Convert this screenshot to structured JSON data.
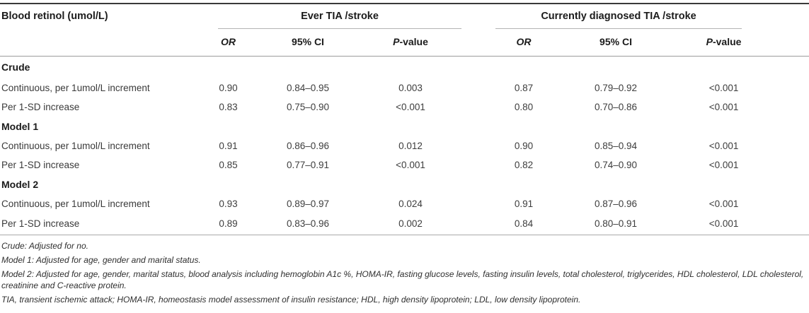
{
  "table": {
    "row_header": "Blood retinol (umol/L)",
    "groups": [
      {
        "label": "Ever TIA /stroke"
      },
      {
        "label": "Currently diagnosed TIA /stroke"
      }
    ],
    "subheaders": {
      "or": "OR",
      "ci": "95% CI",
      "p_italic": "P",
      "p_rest": "-value"
    },
    "sections": [
      {
        "title": "Crude",
        "rows": [
          {
            "label": "Continuous, per 1umol/L increment",
            "ever": {
              "or": "0.90",
              "ci": "0.84–0.95",
              "p": "0.003"
            },
            "current": {
              "or": "0.87",
              "ci": "0.79–0.92",
              "p": "<0.001"
            }
          },
          {
            "label": "Per 1-SD increase",
            "ever": {
              "or": "0.83",
              "ci": "0.75–0.90",
              "p": "<0.001"
            },
            "current": {
              "or": "0.80",
              "ci": "0.70–0.86",
              "p": "<0.001"
            }
          }
        ]
      },
      {
        "title": "Model 1",
        "rows": [
          {
            "label": "Continuous, per 1umol/L increment",
            "ever": {
              "or": "0.91",
              "ci": "0.86–0.96",
              "p": "0.012"
            },
            "current": {
              "or": "0.90",
              "ci": "0.85–0.94",
              "p": "<0.001"
            }
          },
          {
            "label": "Per 1-SD increase",
            "ever": {
              "or": "0.85",
              "ci": "0.77–0.91",
              "p": "<0.001"
            },
            "current": {
              "or": "0.82",
              "ci": "0.74–0.90",
              "p": "<0.001"
            }
          }
        ]
      },
      {
        "title": "Model 2",
        "rows": [
          {
            "label": "Continuous, per 1umol/L increment",
            "ever": {
              "or": "0.93",
              "ci": "0.89–0.97",
              "p": "0.024"
            },
            "current": {
              "or": "0.91",
              "ci": "0.87–0.96",
              "p": "<0.001"
            }
          },
          {
            "label": "Per 1-SD increase",
            "ever": {
              "or": "0.89",
              "ci": "0.83–0.96",
              "p": "0.002"
            },
            "current": {
              "or": "0.84",
              "ci": "0.80–0.91",
              "p": "<0.001"
            }
          }
        ]
      }
    ]
  },
  "footnotes": [
    "Crude: Adjusted for no.",
    "Model 1: Adjusted for age, gender and marital status.",
    "Model 2: Adjusted for age, gender, marital status, blood analysis including hemoglobin A1c %, HOMA-IR, fasting glucose levels, fasting insulin levels, total cholesterol, triglycerides, HDL cholesterol, LDL cholesterol, creatinine and C-reactive protein.",
    "TIA, transient ischemic attack; HOMA-IR, homeostasis model assessment of insulin resistance; HDL, high density lipoprotein; LDL, low density lipoprotein."
  ]
}
